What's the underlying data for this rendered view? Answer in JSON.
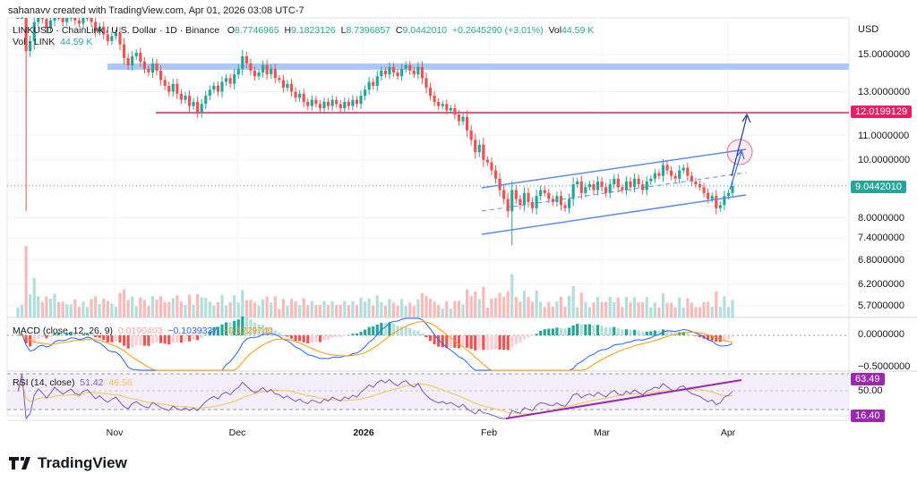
{
  "credit": "sahanavv created with TradingView.com, Apr 01, 2026 03:08 UTC-7",
  "legend": {
    "symbol": "LINKUSD · ChainLink / U.S. Dollar · 1D · Binance",
    "o_label": "O",
    "o": "8.7746965",
    "h_label": "H",
    "h": "9.1823126",
    "l_label": "L",
    "l": "8.7396857",
    "c_label": "C",
    "c": "9.0442010",
    "change": "+0.2645290 (+3.01%)",
    "vol_label": "Vol",
    "vol": "44.59 K",
    "vol_line_label": "Vol · LINK",
    "vol_line_value": "44.59 K"
  },
  "macd": {
    "label": "MACD (close, 12, 26, 9)",
    "hist": "0.0190403",
    "macd": "−0.1039337",
    "signal": "−0.1229740"
  },
  "rsi": {
    "label": "RSI (14, close)",
    "value": "51.42",
    "ma": "46.56"
  },
  "axis": {
    "currency": "USD",
    "prices": [
      "15.0000000",
      "13.0000000",
      "11.0000000",
      "10.0000000",
      "8.0000000",
      "7.4000000",
      "6.8000000",
      "6.2000000",
      "5.7000000"
    ],
    "macd": [
      "0.0000000",
      "−0.5000000"
    ],
    "rsi_mid": "50.00"
  },
  "badges": {
    "resistance": "12.0199129",
    "last": "9.0442010",
    "rsi_high": "63.49",
    "rsi_low": "16.40"
  },
  "time_labels": [
    "Nov",
    "Dec",
    "2026",
    "Feb",
    "Mar",
    "Apr"
  ],
  "brand": "TradingView",
  "colors": {
    "up": "#26a69a",
    "down": "#ef5350",
    "resistance": "#e91e63",
    "channel": "#5b8def",
    "zone": "#a9c8fb",
    "rsi": "#9c27b0"
  },
  "chart_data": {
    "type": "candlestick",
    "start": "2025-10-08",
    "closes": [
      17.6,
      17.9,
      15.2,
      15.8,
      17.0,
      17.6,
      17.2,
      16.6,
      17.1,
      17.8,
      17.4,
      17.0,
      17.3,
      17.6,
      17.1,
      16.9,
      17.3,
      17.5,
      17.0,
      16.4,
      16.7,
      16.2,
      15.8,
      16.1,
      16.3,
      15.6,
      14.8,
      14.4,
      14.9,
      15.1,
      14.6,
      14.2,
      14.0,
      14.5,
      14.1,
      13.6,
      13.3,
      13.0,
      13.4,
      12.9,
      12.6,
      12.8,
      12.3,
      12.5,
      12.0,
      12.4,
      12.8,
      13.1,
      13.3,
      13.0,
      13.5,
      13.7,
      13.4,
      13.9,
      14.2,
      14.9,
      14.5,
      14.1,
      13.8,
      14.0,
      14.4,
      13.9,
      14.2,
      13.7,
      13.6,
      13.2,
      13.4,
      13.0,
      12.7,
      12.9,
      12.5,
      12.3,
      12.6,
      12.4,
      12.2,
      12.5,
      12.3,
      12.6,
      12.4,
      12.2,
      12.5,
      12.3,
      12.6,
      12.4,
      12.8,
      13.1,
      13.5,
      13.3,
      13.8,
      14.1,
      13.9,
      14.3,
      14.0,
      13.8,
      14.2,
      14.4,
      14.1,
      13.9,
      14.3,
      13.7,
      13.2,
      12.8,
      12.5,
      12.3,
      12.4,
      12.1,
      12.2,
      11.9,
      11.6,
      11.8,
      11.2,
      10.8,
      10.3,
      10.6,
      10.0,
      9.9,
      9.6,
      9.3,
      8.9,
      8.6,
      8.2,
      8.9,
      8.6,
      8.4,
      8.8,
      8.5,
      8.3,
      8.7,
      8.9,
      8.8,
      8.6,
      8.5,
      8.7,
      8.4,
      8.3,
      8.6,
      9.1,
      9.2,
      8.8,
      9.0,
      9.1,
      8.9,
      9.2,
      9.0,
      8.8,
      9.1,
      9.3,
      9.0,
      8.9,
      9.2,
      9.0,
      9.3,
      9.1,
      8.9,
      9.2,
      9.3,
      9.5,
      9.4,
      9.8,
      9.6,
      9.4,
      9.3,
      9.6,
      9.7,
      9.4,
      9.2,
      9.1,
      9.0,
      8.8,
      8.6,
      8.7,
      8.3,
      8.4,
      8.7,
      8.8,
      9.04
    ]
  }
}
